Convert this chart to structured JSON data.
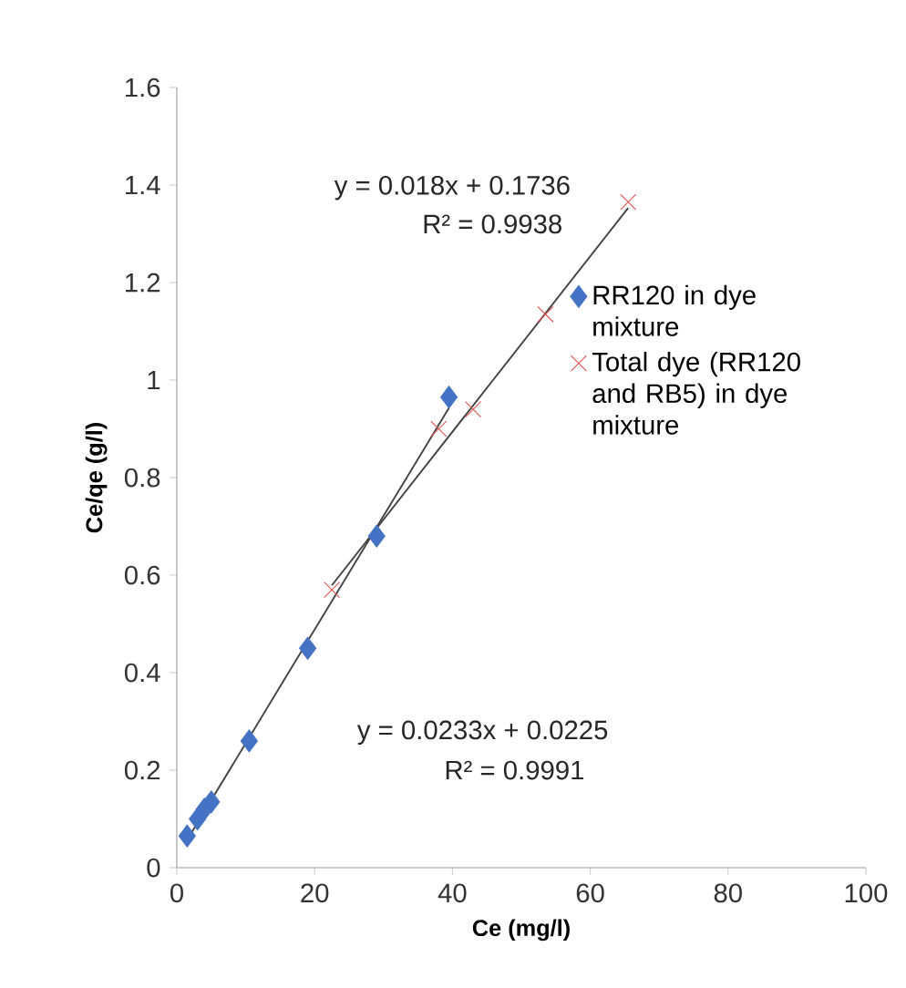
{
  "chart_data": {
    "type": "scatter",
    "xlabel": "Ce (mg/l)",
    "ylabel": "Ce/qe (g/l)",
    "xlim": [
      0,
      100
    ],
    "ylim": [
      0,
      1.6
    ],
    "xticks": [
      0,
      20,
      40,
      60,
      80,
      100
    ],
    "yticks": [
      0,
      0.2,
      0.4,
      0.6,
      0.8,
      1,
      1.2,
      1.4,
      1.6
    ],
    "grid": false,
    "legend": "right",
    "series": [
      {
        "name": "RR120 in dye mixture",
        "color": "#4472c4",
        "marker": "diamond",
        "x": [
          1.5,
          3,
          4,
          5,
          10.5,
          19,
          29,
          39.5
        ],
        "values": [
          0.065,
          0.1,
          0.12,
          0.135,
          0.26,
          0.45,
          0.68,
          0.965
        ]
      },
      {
        "name": "Total dye (RR120 and RB5) in dye mixture",
        "color": "#e05050",
        "marker": "cross",
        "x": [
          22.5,
          38,
          43,
          53.5,
          65.5
        ],
        "values": [
          0.57,
          0.9,
          0.94,
          1.135,
          1.365
        ]
      },
      {
        "type": "line",
        "color": "#404040",
        "marker": "none",
        "line_style": "solid",
        "x": [
          1.5,
          39.5
        ],
        "values": [
          0.057,
          0.943
        ]
      },
      {
        "type": "line",
        "color": "#404040",
        "marker": "none",
        "line_style": "solid",
        "x": [
          22.5,
          65.5
        ],
        "values": [
          0.579,
          1.353
        ]
      }
    ],
    "annotations": [
      "y = 0.018x + 0.1736",
      "R² = 0.9938",
      "y = 0.0233x + 0.0225",
      "R² = 0.9991"
    ]
  }
}
